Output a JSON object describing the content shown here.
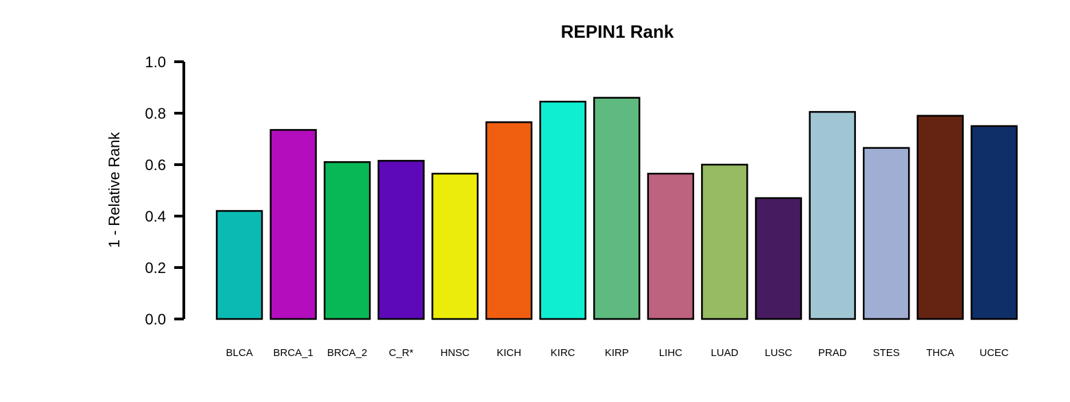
{
  "chart_data": {
    "type": "bar",
    "title": "REPIN1 Rank",
    "ylabel": "1 - Relative Rank",
    "xlabel": "",
    "ylim": [
      0,
      1.0
    ],
    "yticks": [
      "0.0",
      "0.2",
      "0.4",
      "0.6",
      "0.8",
      "1.0"
    ],
    "grid": false,
    "categories": [
      "BLCA",
      "BRCA_1",
      "BRCA_2",
      "C_R*",
      "HNSC",
      "KICH",
      "KIRC",
      "KIRP",
      "LIHC",
      "LUAD",
      "LUSC",
      "PRAD",
      "STES",
      "THCA",
      "UCEC"
    ],
    "values": [
      0.42,
      0.735,
      0.61,
      0.615,
      0.565,
      0.765,
      0.845,
      0.86,
      0.565,
      0.6,
      0.47,
      0.805,
      0.665,
      0.79,
      0.75
    ],
    "colors": [
      "#0BBAB3",
      "#B40DBD",
      "#08B857",
      "#5E09B9",
      "#ECEC0A",
      "#F05F10",
      "#10EED2",
      "#5FBA7F",
      "#BD627F",
      "#96BB62",
      "#471B5F",
      "#A0C6D4",
      "#9FAED2",
      "#642411",
      "#0F2F68"
    ]
  }
}
